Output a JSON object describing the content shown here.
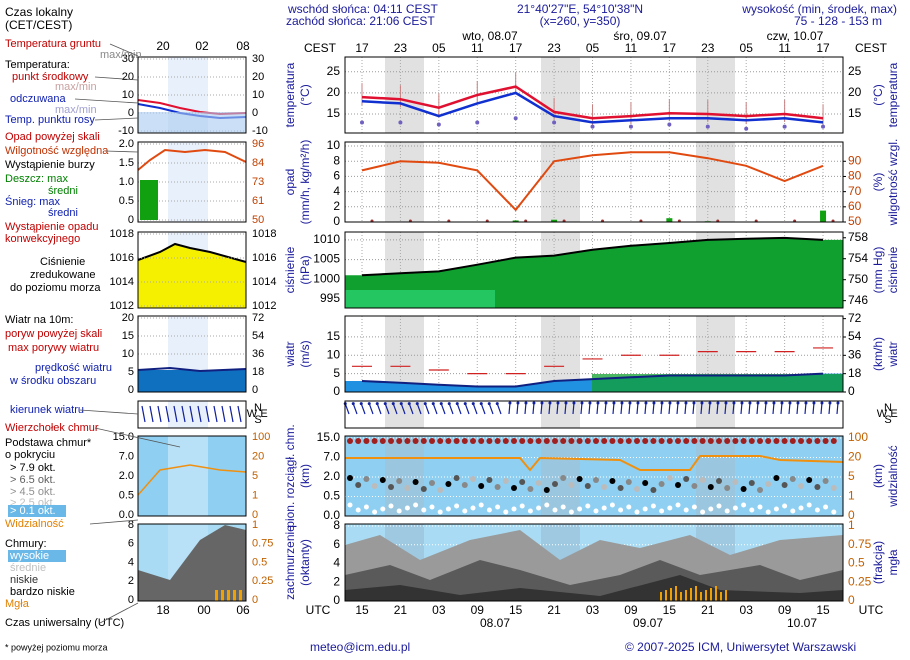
{
  "header": {
    "local_time": [
      "Czas lokalny",
      "(CET/CEST)"
    ],
    "sunrise": "wschód słońca: 04:11 CEST",
    "sunset": "zachód słońca: 21:06 CEST",
    "coords": "21°40'27\"E, 54°10'38\"N",
    "grid_point": "(x=260,  y=350)",
    "elevation_title": "wysokość (min, środek, max)",
    "elevation": "75 - 128 - 153 m"
  },
  "tz_local": "CEST",
  "tz_utc": "UTC",
  "days": [
    "wto, 08.07",
    "śro, 09.07",
    "czw, 10.07"
  ],
  "local_hours": [
    "17",
    "23",
    "05",
    "11",
    "17",
    "23",
    "05",
    "11",
    "17",
    "23",
    "05",
    "11",
    "17"
  ],
  "utc_hours": [
    "15",
    "21",
    "03",
    "09",
    "15",
    "21",
    "03",
    "09",
    "15",
    "21",
    "03",
    "09",
    "15"
  ],
  "utc_dates": [
    "08.07",
    "09.07",
    "10.07"
  ],
  "small_hours_top": [
    "20",
    "02",
    "08"
  ],
  "small_hours_bottom": [
    "18",
    "00",
    "06"
  ],
  "compass": [
    "N",
    "W",
    "S",
    "E"
  ],
  "panels": {
    "temperature": {
      "title": [
        "temperatura",
        "(°C)"
      ],
      "ylim": [
        10.5,
        28.5
      ],
      "yticks": [
        15,
        20,
        25
      ],
      "small_left": [
        "30",
        "20",
        "10",
        "0",
        "-10"
      ],
      "small_right": [
        "30",
        "20",
        "10",
        "0",
        "-10"
      ]
    },
    "precipitation": {
      "title": [
        "opad",
        "(mm/h, kg/m²/h)"
      ],
      "title_right": [
        "(%)",
        "wilgotność wzgl."
      ],
      "ylim": [
        0,
        10.53
      ],
      "yticks": [
        0,
        2,
        4,
        6,
        8,
        10
      ],
      "y2lim": [
        50,
        102.7
      ],
      "y2ticks": [
        50,
        60,
        70,
        80,
        90
      ],
      "small_left": [
        "2.0",
        "1.5",
        "1.0",
        "0.5",
        "0"
      ],
      "small_right": [
        "96",
        "84",
        "73",
        "61",
        "50"
      ]
    },
    "pressure": {
      "title": [
        "ciśnienie",
        "(hPa)"
      ],
      "title_right": [
        "(mm Hg)",
        "ciśnienie"
      ],
      "ylim": [
        992.7,
        1012
      ],
      "yticks": [
        995,
        1000,
        1005,
        1010
      ],
      "y2lim": [
        744.6,
        759.1
      ],
      "y2ticks": [
        746,
        750,
        754,
        758
      ],
      "small_left": [
        "1018",
        "1016",
        "1014",
        "1012"
      ],
      "small_right": [
        "1018",
        "1016",
        "1014",
        "1012"
      ]
    },
    "wind": {
      "title": [
        "wiatr",
        "(m/s)"
      ],
      "title_right": [
        "(km/h)",
        "wiatr"
      ],
      "ylim": [
        0,
        20.7
      ],
      "yticks": [
        0,
        5,
        10,
        15
      ],
      "y2lim": [
        0,
        74.6
      ],
      "y2ticks": [
        0,
        18,
        36,
        54,
        72
      ],
      "small_left": [
        "20",
        "15",
        "10",
        "5",
        "0"
      ],
      "small_right": [
        "72",
        "54",
        "36",
        "18",
        "0"
      ]
    },
    "cloud_base": {
      "title": [
        "pion. rozciągł. chm.",
        "(km)"
      ],
      "title_right": [
        "(km)",
        "widzialność"
      ],
      "ticks": [
        "15.0",
        "7.0",
        "2.0",
        "0.5",
        "0.0"
      ],
      "ticks_right": [
        "100",
        "20",
        "5",
        "1",
        "0"
      ]
    },
    "cloud_cover": {
      "title": [
        "zachmurzenie",
        "(oktanty)"
      ],
      "title_right": [
        "(frakcja)",
        "mgła"
      ],
      "ticks": [
        "8",
        "6",
        "4",
        "2",
        "0"
      ],
      "ticks_right": [
        "1",
        "0.75",
        "0.5",
        "0.25",
        "0"
      ]
    }
  },
  "series": {
    "temperature": [
      19,
      18.5,
      16.5,
      19.5,
      21.5,
      15.5,
      14,
      14.5,
      15.2,
      15,
      14.5,
      15,
      14
    ],
    "feels_like": [
      18,
      17.5,
      14.5,
      17.5,
      20,
      14.5,
      13,
      13.5,
      14,
      14,
      13.5,
      14,
      13
    ],
    "dew_point": [
      13,
      13,
      12.5,
      13,
      14,
      13,
      12,
      12,
      12.5,
      12,
      11.5,
      12,
      12
    ],
    "humidity": [
      84,
      90,
      89,
      84,
      58,
      90,
      94,
      96,
      96,
      92,
      87,
      77,
      87
    ],
    "precipitation": [
      0,
      0,
      0,
      0,
      0.2,
      0.3,
      0,
      0,
      0.5,
      0.1,
      0,
      0,
      1.5
    ],
    "pressure": [
      1001,
      1001.5,
      1002,
      1003.7,
      1005.5,
      1006,
      1007.5,
      1008.5,
      1009.2,
      1010,
      1010.3,
      1010.5,
      1010
    ],
    "wind_speed": [
      3,
      2.5,
      2,
      1.5,
      1.5,
      3,
      3.5,
      4,
      4.5,
      4.5,
      4.5,
      4.5,
      5
    ],
    "wind_gust": [
      7,
      7,
      6,
      5,
      5,
      7,
      9,
      10,
      10,
      11,
      11,
      11,
      12
    ]
  },
  "legend": [
    {
      "text": "Temperatura gruntu",
      "color": "#c00000"
    },
    {
      "text": "max/min",
      "color": "#888888"
    },
    {
      "text": "Temperatura:",
      "color": "#000000"
    },
    {
      "text": "punkt środkowy",
      "color": "#c00000"
    },
    {
      "text": "max/min",
      "color": "#c8a0a0"
    },
    {
      "text": "odczuwana",
      "color": "#1020b0"
    },
    {
      "text": "max/min",
      "color": "#a0a0d0"
    },
    {
      "text": "Temp. punktu rosy",
      "color": "#1020b0"
    },
    {
      "text": "Opad powyżej skali",
      "color": "#c00000"
    },
    {
      "text": "Wilgotność względna",
      "color": "#c03000"
    },
    {
      "text": "Wystąpienie burzy",
      "color": "#000000"
    },
    {
      "text": "Deszcz: max",
      "color": "#008000"
    },
    {
      "text": "średni",
      "color": "#008000"
    },
    {
      "text": "Śnieg:  max",
      "color": "#1020b0"
    },
    {
      "text": "średni",
      "color": "#1020b0"
    },
    {
      "text": "Wystąpienie opadu",
      "color": "#c00000"
    },
    {
      "text": "konwekcyjnego",
      "color": "#c00000"
    },
    {
      "text": "Ciśnienie",
      "color": "#000000"
    },
    {
      "text": "zredukowane",
      "color": "#000000"
    },
    {
      "text": "do poziomu morza",
      "color": "#000000"
    },
    {
      "text": "Wiatr na 10m:",
      "color": "#000000"
    },
    {
      "text": "poryw powyżej skali",
      "color": "#c00000"
    },
    {
      "text": "max porywy wiatru",
      "color": "#c00000"
    },
    {
      "text": "prędkość wiatru",
      "color": "#1020b0"
    },
    {
      "text": "w środku obszaru",
      "color": "#1020b0"
    },
    {
      "text": "kierunek wiatru",
      "color": "#1020b0"
    },
    {
      "text": "Wierzchołek chmur",
      "color": "#c00000"
    },
    {
      "text": "Podstawa chmur*",
      "color": "#000000"
    },
    {
      "text": "o pokryciu",
      "color": "#000000"
    },
    {
      "text": "> 7.9 okt.",
      "color": "#000000"
    },
    {
      "text": "> 6.5 okt.",
      "color": "#606060"
    },
    {
      "text": "> 4.5 okt.",
      "color": "#909090"
    },
    {
      "text": "> 2.5 okt.",
      "color": "#c0c0c0"
    },
    {
      "text": "> 0.1 okt.",
      "color": "#ffffff"
    },
    {
      "text": "Widzialność",
      "color": "#e08000"
    },
    {
      "text": "Chmury:",
      "color": "#000000"
    },
    {
      "text": "wysokie",
      "color": "#ffffff"
    },
    {
      "text": "średnie",
      "color": "#c0c0c0"
    },
    {
      "text": "niskie",
      "color": "#303030"
    },
    {
      "text": "bardzo niskie",
      "color": "#000000"
    },
    {
      "text": "Mgła",
      "color": "#e08000"
    },
    {
      "text": "Czas uniwersalny (UTC)",
      "color": "#000000"
    }
  ],
  "footer": {
    "note": "* powyżej poziomu morza",
    "email": "meteo@icm.edu.pl",
    "copyright": "© 2007-2025 ICM, Uniwersytet Warszawski"
  }
}
